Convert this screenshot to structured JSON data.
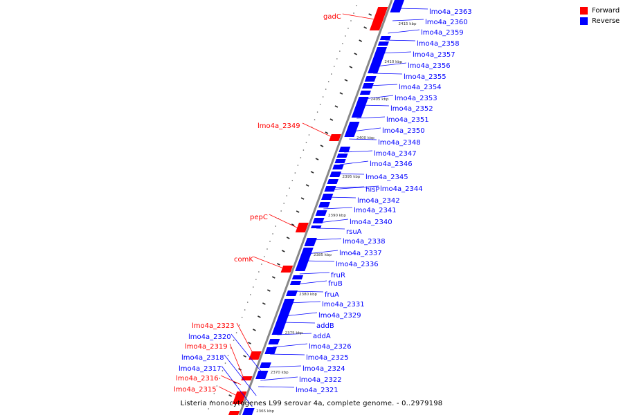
{
  "colors": {
    "forward": "#ff0000",
    "reverse": "#0000ff",
    "backbone": "#888888"
  },
  "legend": {
    "forward_label": "Forward",
    "reverse_label": "Reverse"
  },
  "caption": "Listeria monocytogenes L99 serovar 4a, complete genome. - 0..2979198",
  "scale_labels": [
    "2415 kbp",
    "2410 kbp",
    "2405 kbp",
    "2400 kbp",
    "2395 kbp",
    "2390 kbp",
    "2385 kbp",
    "2380 kbp",
    "2375 kbp",
    "2370 kbp",
    "2365 kbp"
  ],
  "forward_genes": [
    "gadC",
    "lmo4a_2349",
    "pepC",
    "comK",
    "lmo4a_2323",
    "lmo4a_2319",
    "lmo4a_2316",
    "lmo4a_2315"
  ],
  "reverse_genes": [
    "lmo4a_2363",
    "lmo4a_2360",
    "lmo4a_2359",
    "lmo4a_2358",
    "lmo4a_2357",
    "lmo4a_2356",
    "lmo4a_2355",
    "lmo4a_2354",
    "lmo4a_2353",
    "lmo4a_2352",
    "lmo4a_2351",
    "lmo4a_2350",
    "lmo4a_2348",
    "lmo4a_2347",
    "lmo4a_2346",
    "lmo4a_2345",
    "hisP",
    "lmo4a_2344",
    "lmo4a_2342",
    "lmo4a_2341",
    "lmo4a_2340",
    "rsuA",
    "lmo4a_2338",
    "lmo4a_2337",
    "lmo4a_2336",
    "fruR",
    "fruB",
    "fruA",
    "lmo4a_2331",
    "lmo4a_2329",
    "addB",
    "addA",
    "lmo4a_2326",
    "lmo4a_2325",
    "lmo4a_2324",
    "lmo4a_2322",
    "lmo4a_2321",
    "lmo4a_2320",
    "lmo4a_2318",
    "lmo4a_2317"
  ]
}
